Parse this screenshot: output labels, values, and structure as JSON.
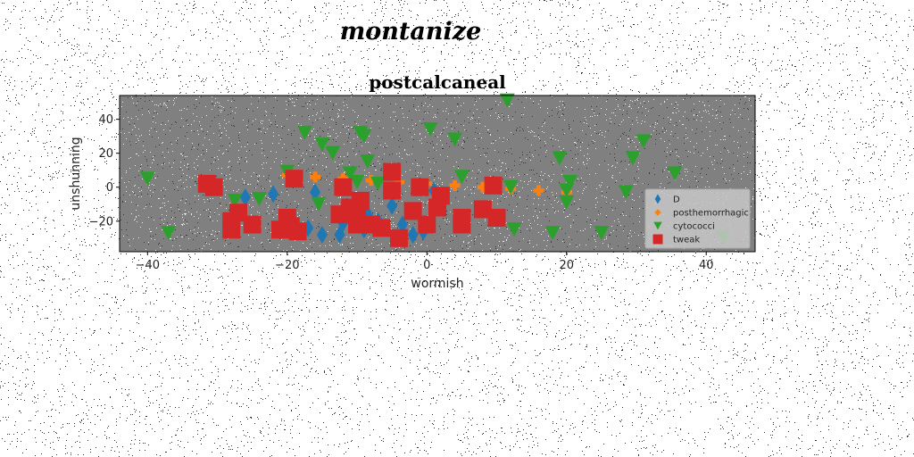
{
  "figure_title": "montanize",
  "chart_data": {
    "type": "scatter",
    "title": "postcalcaneal",
    "xlabel": "wormish",
    "ylabel": "unshunning",
    "xlim": [
      -44,
      47
    ],
    "ylim": [
      -38,
      54
    ],
    "xticks": [
      -40,
      -20,
      0,
      20,
      40
    ],
    "yticks": [
      -20,
      0,
      20,
      40
    ],
    "xtick_labels": [
      "−40",
      "−20",
      "0",
      "20",
      "40"
    ],
    "ytick_labels": [
      "−20",
      "0",
      "20",
      "40"
    ],
    "grid": false,
    "legend_position": "lower-right",
    "background_color": "#808080",
    "series": [
      {
        "name": "D",
        "marker": "diamond",
        "color": "#1f77b4",
        "x": [
          -26,
          -22,
          -19.5,
          -16,
          -15,
          -12.5,
          -12,
          -9,
          -7,
          -5,
          -3.5,
          -2,
          -0.5,
          1,
          -17,
          -10.5,
          -8.5
        ],
        "y": [
          -6,
          -4,
          -26,
          -3,
          -28,
          -28,
          -21,
          -25,
          -20,
          -11,
          -22,
          -28,
          -26,
          -2,
          -24,
          -14,
          -16
        ]
      },
      {
        "name": "posthemorrhagic",
        "marker": "plus",
        "color": "#ff7f0e",
        "x": [
          -20,
          -16,
          -12,
          -8,
          -4,
          0,
          4,
          8,
          12,
          16,
          20
        ],
        "y": [
          7,
          6,
          5,
          4,
          3,
          2,
          1,
          0,
          -1,
          -2,
          -3
        ]
      },
      {
        "name": "cytococci",
        "marker": "triangle-down",
        "color": "#2ca02c",
        "x": [
          11.5,
          -17.5,
          -15,
          -13.5,
          -9.5,
          -9,
          -8.5,
          0.5,
          4,
          -20,
          -11,
          -10,
          -7,
          5,
          19,
          20.5,
          20,
          31,
          29.5,
          35.5,
          28.5,
          12,
          20,
          -40,
          -37,
          -27.5,
          -15.5,
          -24,
          12.5,
          18,
          25,
          42.5
        ],
        "y": [
          51,
          32,
          25,
          20,
          32,
          30,
          15,
          34,
          28,
          9,
          8,
          3,
          2,
          6,
          17,
          3,
          -2,
          27,
          17,
          8,
          -3,
          0,
          -9,
          5,
          -27,
          -8,
          -10,
          -7,
          -25,
          -27,
          -27,
          -30
        ]
      },
      {
        "name": "tweak",
        "marker": "square",
        "color": "#d62728",
        "x": [
          -31.5,
          -30.5,
          -28,
          -28,
          -27,
          -25,
          -21,
          -20,
          -19.5,
          -18.5,
          -19,
          -12,
          -12.5,
          -11,
          -10,
          -10,
          -9.5,
          -8,
          -6.5,
          -5,
          -5,
          -4,
          -2,
          -1,
          0,
          1.5,
          2,
          5,
          5,
          8,
          9.5,
          10
        ],
        "y": [
          2,
          0,
          -25,
          -20,
          -15,
          -22,
          -25,
          -18,
          -23,
          -26,
          5,
          0,
          -16,
          -12,
          -18,
          -22,
          -8,
          -22,
          -24,
          9,
          -2,
          -30,
          -14,
          0,
          -22,
          -12,
          -5,
          -18,
          -22,
          -13,
          1,
          -18
        ]
      }
    ]
  }
}
